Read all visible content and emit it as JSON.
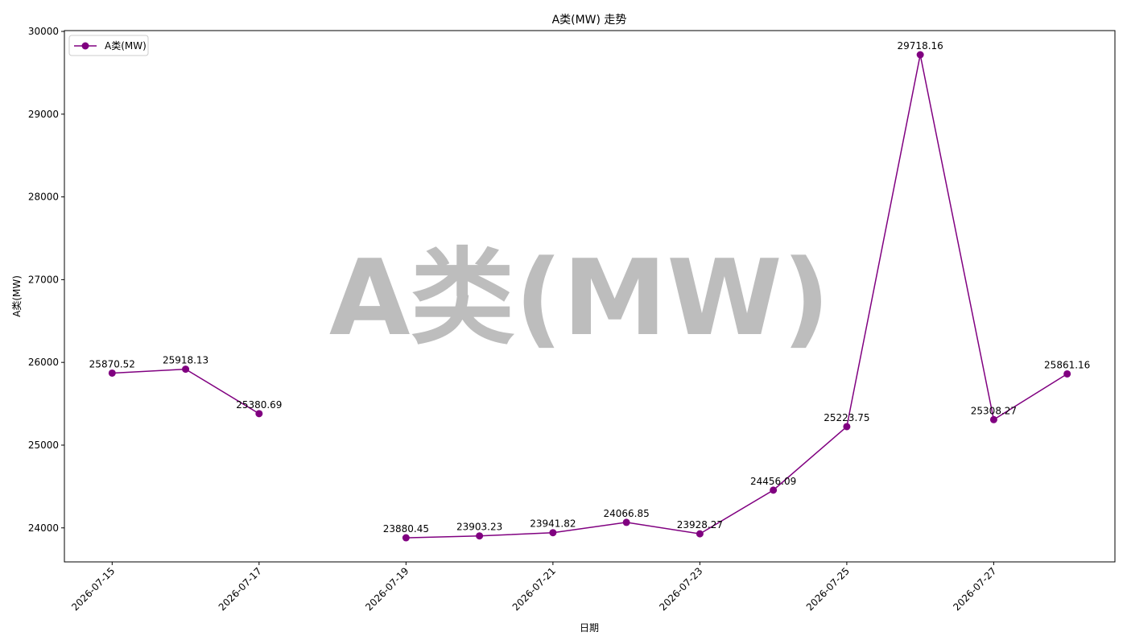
{
  "chart_data": {
    "type": "line",
    "title": "A类(MW) 走势",
    "xlabel": "日期",
    "ylabel": "A类(MW)",
    "watermark": "A类(MW)",
    "x": [
      "2026-07-15",
      "2026-07-16",
      "2026-07-17",
      "2026-07-18",
      "2026-07-19",
      "2026-07-20",
      "2026-07-21",
      "2026-07-22",
      "2026-07-23",
      "2026-07-24",
      "2026-07-25",
      "2026-07-26",
      "2026-07-27",
      "2026-07-28"
    ],
    "series": [
      {
        "name": "A类(MW)",
        "color": "#800080",
        "values": [
          25870.52,
          25918.13,
          25380.69,
          null,
          23880.45,
          23903.23,
          23941.82,
          24066.85,
          23928.27,
          24456.09,
          25223.75,
          29718.16,
          25308.27,
          25861.16
        ]
      }
    ],
    "xlim": [
      "2026-07-14T08:24:00Z",
      "2026-07-28T15:36:00Z"
    ],
    "xticks": [
      "2026-07-15",
      "2026-07-17",
      "2026-07-19",
      "2026-07-21",
      "2026-07-23",
      "2026-07-25",
      "2026-07-27"
    ],
    "ylim": [
      23589,
      30010
    ],
    "yticks": [
      24000,
      25000,
      26000,
      27000,
      28000,
      29000,
      30000
    ],
    "legend": "upper left",
    "grid": false
  }
}
